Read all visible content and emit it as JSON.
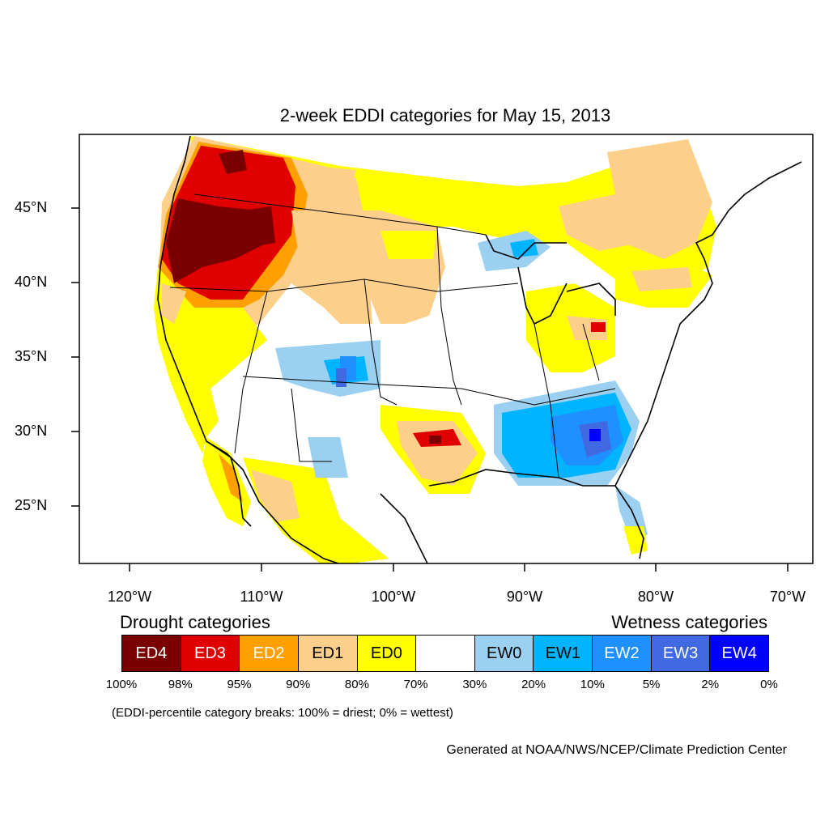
{
  "title": "2-week EDDI categories for May 15, 2013",
  "lat_ticks": [
    "45°N",
    "40°N",
    "35°N",
    "30°N",
    "25°N"
  ],
  "lon_ticks": [
    "120°W",
    "110°W",
    "100°W",
    "90°W",
    "80°W",
    "70°W"
  ],
  "legend": {
    "drought_label": "Drought categories",
    "wetness_label": "Wetness categories",
    "categories": [
      {
        "label": "ED4",
        "color": "#7a0000",
        "text_color": "#ffffff"
      },
      {
        "label": "ED3",
        "color": "#e00000",
        "text_color": "#ffffff"
      },
      {
        "label": "ED2",
        "color": "#ff9f00",
        "text_color": "#ffffff"
      },
      {
        "label": "ED1",
        "color": "#fcd08a",
        "text_color": "#000000"
      },
      {
        "label": "ED0",
        "color": "#ffff00",
        "text_color": "#000000"
      },
      {
        "label": "",
        "color": "#ffffff",
        "text_color": "#000000"
      },
      {
        "label": "EW0",
        "color": "#9bd0f0",
        "text_color": "#000000"
      },
      {
        "label": "EW1",
        "color": "#00b4ff",
        "text_color": "#000000"
      },
      {
        "label": "EW2",
        "color": "#1e90ff",
        "text_color": "#ffffff"
      },
      {
        "label": "EW3",
        "color": "#4169e1",
        "text_color": "#ffffff"
      },
      {
        "label": "EW4",
        "color": "#0000ff",
        "text_color": "#ffffff"
      }
    ],
    "percent_breaks": [
      "100%",
      "98%",
      "95%",
      "90%",
      "80%",
      "70%",
      "30%",
      "20%",
      "10%",
      "5%",
      "2%",
      "0%"
    ]
  },
  "note": "(EDDI-percentile category breaks: 100% = driest; 0% = wettest)",
  "credit": "Generated at NOAA/NWS/NCEP/Climate Prediction Center"
}
